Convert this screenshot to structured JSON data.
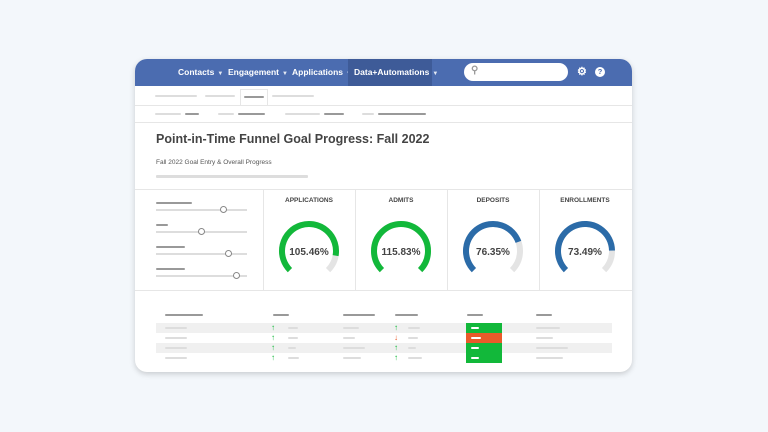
{
  "nav": {
    "items": [
      {
        "label": "Contacts"
      },
      {
        "label": "Engagement"
      },
      {
        "label": "Applications"
      },
      {
        "label": "Data+Automations",
        "active": true
      }
    ],
    "search_placeholder": "",
    "icons": [
      "search-icon",
      "gear-icon",
      "help-icon"
    ]
  },
  "page": {
    "title": "Point-in-Time Funnel Goal Progress: Fall 2022",
    "subtitle": "Fall 2022 Goal Entry & Overall Progress"
  },
  "colors": {
    "nav": "#4b6cb0",
    "green": "#12b83a",
    "blue": "#2b6ba8",
    "red": "#ea5a2a",
    "track": "#e4e4e4"
  },
  "sliders": [
    0.74,
    0.5,
    0.8,
    0.88
  ],
  "gauges": [
    {
      "label": "APPLICATIONS",
      "value": "105.46%",
      "fill": 0.87,
      "color": "#12b83a"
    },
    {
      "label": "ADMITS",
      "value": "115.83%",
      "fill": 1.0,
      "color": "#12b83a"
    },
    {
      "label": "DEPOSITS",
      "value": "76.35%",
      "fill": 0.76,
      "color": "#2b6ba8"
    },
    {
      "label": "ENROLLMENTS",
      "value": "73.49%",
      "fill": 0.83,
      "color": "#2b6ba8"
    }
  ],
  "table": {
    "rows": [
      {
        "trend1": "up",
        "trend2": "up",
        "status": "green"
      },
      {
        "trend1": "up",
        "trend2": "down",
        "status": "red"
      },
      {
        "trend1": "up",
        "trend2": "up",
        "status": "green"
      },
      {
        "trend1": "up",
        "trend2": "up",
        "status": "green"
      }
    ]
  }
}
